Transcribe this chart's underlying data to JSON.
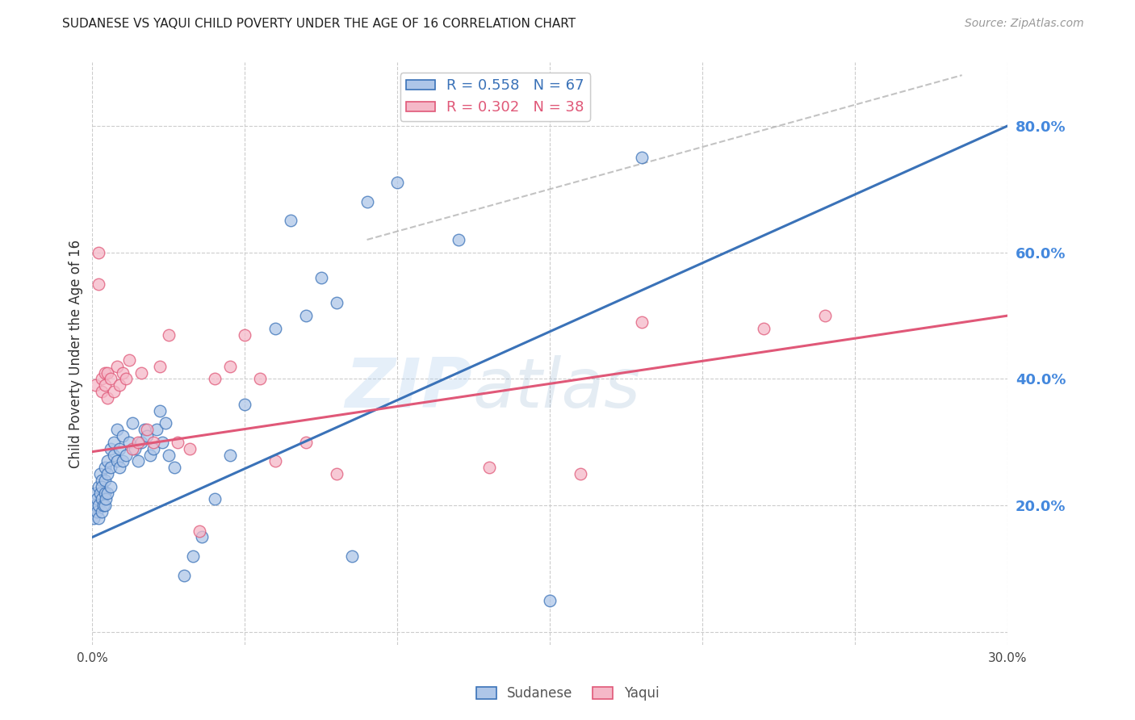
{
  "title": "SUDANESE VS YAQUI CHILD POVERTY UNDER THE AGE OF 16 CORRELATION CHART",
  "source": "Source: ZipAtlas.com",
  "ylabel": "Child Poverty Under the Age of 16",
  "xlim": [
    0.0,
    0.3
  ],
  "ylim": [
    -0.02,
    0.9
  ],
  "xtick_vals": [
    0.0,
    0.05,
    0.1,
    0.15,
    0.2,
    0.25,
    0.3
  ],
  "xtick_labels": [
    "0.0%",
    "",
    "",
    "",
    "",
    "",
    "30.0%"
  ],
  "ytick_vals_right": [
    0.2,
    0.4,
    0.6,
    0.8
  ],
  "ytick_labels_right": [
    "20.0%",
    "40.0%",
    "60.0%",
    "80.0%"
  ],
  "grid_yticks": [
    0.0,
    0.2,
    0.4,
    0.6,
    0.8
  ],
  "watermark_zip": "ZIP",
  "watermark_atlas": "atlas",
  "sudanese_color": "#aec6e8",
  "sudanese_line_color": "#3a72b8",
  "yaqui_color": "#f5b8c8",
  "yaqui_line_color": "#e05878",
  "grid_color": "#cccccc",
  "right_axis_label_color": "#4488dd",
  "background_color": "#ffffff",
  "title_fontsize": 11,
  "source_fontsize": 10,
  "legend_r1": "R = 0.558",
  "legend_n1": "N = 67",
  "legend_r2": "R = 0.302",
  "legend_n2": "N = 38",
  "sudanese_x": [
    0.0005,
    0.001,
    0.001,
    0.0015,
    0.0015,
    0.002,
    0.002,
    0.002,
    0.0025,
    0.0025,
    0.003,
    0.003,
    0.003,
    0.003,
    0.0035,
    0.004,
    0.004,
    0.004,
    0.004,
    0.0045,
    0.005,
    0.005,
    0.005,
    0.006,
    0.006,
    0.006,
    0.007,
    0.007,
    0.008,
    0.008,
    0.009,
    0.009,
    0.01,
    0.01,
    0.011,
    0.012,
    0.013,
    0.014,
    0.015,
    0.016,
    0.017,
    0.018,
    0.019,
    0.02,
    0.021,
    0.022,
    0.023,
    0.024,
    0.025,
    0.027,
    0.03,
    0.033,
    0.036,
    0.04,
    0.045,
    0.05,
    0.06,
    0.065,
    0.07,
    0.075,
    0.08,
    0.085,
    0.09,
    0.1,
    0.12,
    0.15,
    0.18
  ],
  "sudanese_y": [
    0.18,
    0.22,
    0.2,
    0.19,
    0.21,
    0.23,
    0.2,
    0.18,
    0.22,
    0.25,
    0.24,
    0.21,
    0.19,
    0.23,
    0.2,
    0.26,
    0.22,
    0.24,
    0.2,
    0.21,
    0.25,
    0.22,
    0.27,
    0.29,
    0.26,
    0.23,
    0.28,
    0.3,
    0.32,
    0.27,
    0.29,
    0.26,
    0.31,
    0.27,
    0.28,
    0.3,
    0.33,
    0.29,
    0.27,
    0.3,
    0.32,
    0.31,
    0.28,
    0.29,
    0.32,
    0.35,
    0.3,
    0.33,
    0.28,
    0.26,
    0.09,
    0.12,
    0.15,
    0.21,
    0.28,
    0.36,
    0.48,
    0.65,
    0.5,
    0.56,
    0.52,
    0.12,
    0.68,
    0.71,
    0.62,
    0.05,
    0.75
  ],
  "yaqui_x": [
    0.001,
    0.002,
    0.002,
    0.003,
    0.003,
    0.004,
    0.004,
    0.005,
    0.005,
    0.006,
    0.007,
    0.008,
    0.009,
    0.01,
    0.011,
    0.012,
    0.013,
    0.015,
    0.016,
    0.018,
    0.02,
    0.022,
    0.025,
    0.028,
    0.032,
    0.035,
    0.04,
    0.045,
    0.05,
    0.055,
    0.06,
    0.07,
    0.08,
    0.13,
    0.16,
    0.18,
    0.22,
    0.24
  ],
  "yaqui_y": [
    0.39,
    0.6,
    0.55,
    0.38,
    0.4,
    0.41,
    0.39,
    0.37,
    0.41,
    0.4,
    0.38,
    0.42,
    0.39,
    0.41,
    0.4,
    0.43,
    0.29,
    0.3,
    0.41,
    0.32,
    0.3,
    0.42,
    0.47,
    0.3,
    0.29,
    0.16,
    0.4,
    0.42,
    0.47,
    0.4,
    0.27,
    0.3,
    0.25,
    0.26,
    0.25,
    0.49,
    0.48,
    0.5
  ],
  "blue_line_x": [
    0.0,
    0.3
  ],
  "blue_line_y": [
    0.15,
    0.8
  ],
  "pink_line_x": [
    0.0,
    0.3
  ],
  "pink_line_y": [
    0.285,
    0.5
  ],
  "dash_line_x": [
    0.09,
    0.285
  ],
  "dash_line_y": [
    0.62,
    0.88
  ]
}
